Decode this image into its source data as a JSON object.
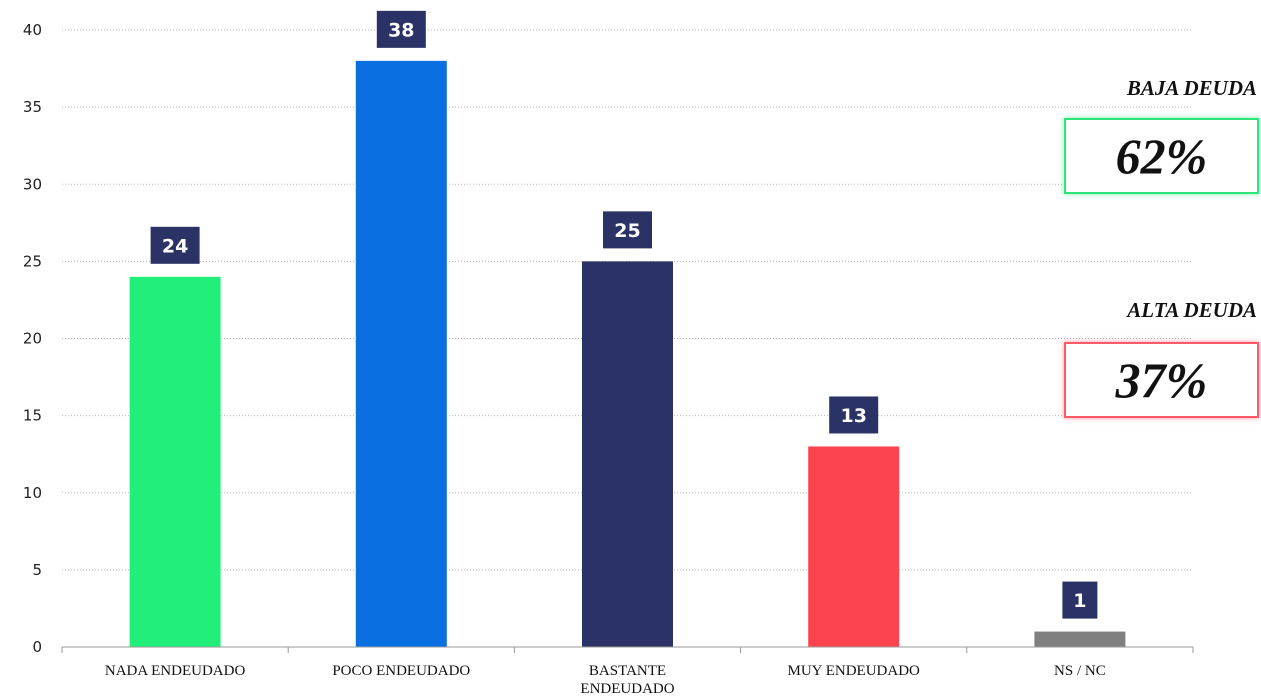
{
  "chart_data": {
    "type": "bar",
    "categories": [
      "NADA ENDEUDADO",
      "POCO ENDEUDADO",
      "BASTANTE ENDEUDADO",
      "MUY ENDEUDADO",
      "NS / NC"
    ],
    "category_lines": [
      [
        "NADA ENDEUDADO"
      ],
      [
        "POCO ENDEUDADO"
      ],
      [
        "BASTANTE",
        "ENDEUDADO"
      ],
      [
        "MUY ENDEUDADO"
      ],
      [
        "NS / NC"
      ]
    ],
    "values": [
      24,
      38,
      25,
      13,
      1
    ],
    "colors": [
      "#22ee7a",
      "#0a6fe0",
      "#2b3266",
      "#fc4350",
      "#808080"
    ],
    "label_bg": "#2b3266",
    "ylim": [
      0,
      40
    ],
    "yticks": [
      0,
      5,
      10,
      15,
      20,
      25,
      30,
      35,
      40
    ],
    "grid": true
  },
  "summary": {
    "baja": {
      "title": "BAJA DEUDA",
      "value": "62%",
      "color": "#2ee57d"
    },
    "alta": {
      "title": "ALTA DEUDA",
      "value": "37%",
      "color": "#ff5a6a"
    }
  }
}
